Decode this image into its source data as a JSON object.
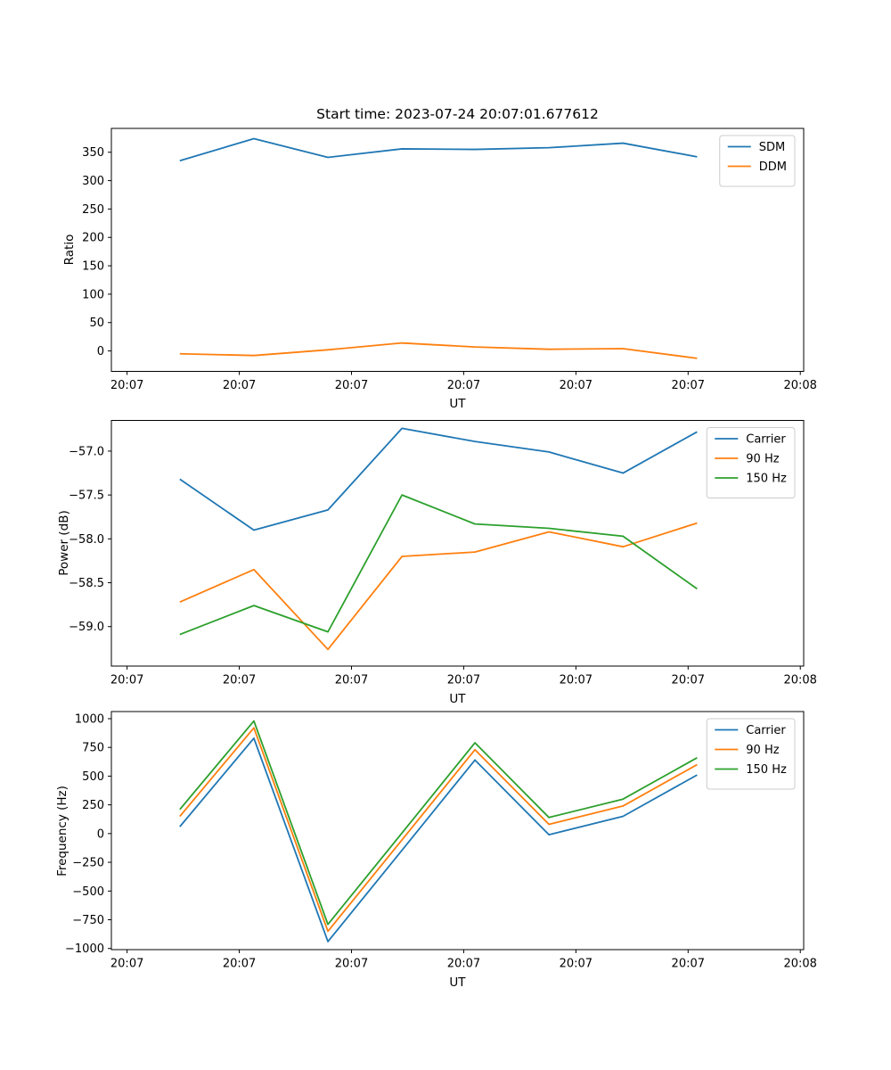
{
  "figure": {
    "title": "Start time: 2023-07-24 20:07:01.677612"
  },
  "palette": {
    "blue": "#1f77b4",
    "orange": "#ff7f0e",
    "green": "#2ca02c",
    "axis": "#000000",
    "legend_border": "#cccccc"
  },
  "x_axis": {
    "label": "UT",
    "tick_labels": [
      "20:07",
      "20:07",
      "20:07",
      "20:07",
      "20:07",
      "20:07",
      "20:08"
    ],
    "tick_positions_s": [
      0,
      10,
      20,
      30,
      40,
      50,
      60
    ],
    "xlim_s": [
      -1.4,
      60.3
    ],
    "sample_times_s": [
      4.7,
      11.3,
      17.9,
      24.5,
      31.0,
      37.6,
      44.2,
      50.8
    ]
  },
  "chart_data": [
    {
      "type": "line",
      "title": "Start time: 2023-07-24 20:07:01.677612",
      "xlabel": "UT",
      "ylabel": "Ratio",
      "ylim": [
        -36,
        392
      ],
      "yticks": [
        0,
        50,
        100,
        150,
        200,
        250,
        300,
        350
      ],
      "ytick_labels": [
        "0",
        "50",
        "100",
        "150",
        "200",
        "250",
        "300",
        "350"
      ],
      "grid": false,
      "legend_position": "upper right",
      "series": [
        {
          "name": "SDM",
          "color": "#1f77b4",
          "values": [
            335,
            374,
            341,
            356,
            355,
            358,
            366,
            342
          ]
        },
        {
          "name": "DDM",
          "color": "#ff7f0e",
          "values": [
            -5,
            -8,
            2,
            14,
            7,
            3,
            4,
            -13
          ]
        }
      ]
    },
    {
      "type": "line",
      "title": "",
      "xlabel": "UT",
      "ylabel": "Power (dB)",
      "ylim": [
        -59.45,
        -56.65
      ],
      "yticks": [
        -59.0,
        -58.5,
        -58.0,
        -57.5,
        -57.0
      ],
      "ytick_labels": [
        "−59.0",
        "−58.5",
        "−58.0",
        "−57.5",
        "−57.0"
      ],
      "grid": false,
      "legend_position": "upper right",
      "series": [
        {
          "name": "Carrier",
          "color": "#1f77b4",
          "values": [
            -57.32,
            -57.9,
            -57.67,
            -56.74,
            -56.89,
            -57.01,
            -57.25,
            -56.78
          ]
        },
        {
          "name": "90 Hz",
          "color": "#ff7f0e",
          "values": [
            -58.72,
            -58.35,
            -59.26,
            -58.2,
            -58.15,
            -57.92,
            -58.09,
            -57.82
          ]
        },
        {
          "name": "150 Hz",
          "color": "#2ca02c",
          "values": [
            -59.09,
            -58.76,
            -59.06,
            -57.5,
            -57.83,
            -57.88,
            -57.97,
            -58.57
          ]
        }
      ]
    },
    {
      "type": "line",
      "title": "",
      "xlabel": "UT",
      "ylabel": "Frequency (Hz)",
      "ylim": [
        -1010,
        1062
      ],
      "yticks": [
        -1000,
        -750,
        -500,
        -250,
        0,
        250,
        500,
        750,
        1000
      ],
      "ytick_labels": [
        "−1000",
        "−750",
        "−500",
        "−250",
        "0",
        "250",
        "500",
        "750",
        "1000"
      ],
      "grid": false,
      "legend_position": "upper right",
      "series": [
        {
          "name": "Carrier",
          "color": "#1f77b4",
          "values": [
            60,
            830,
            -940,
            -145,
            640,
            -10,
            150,
            510
          ]
        },
        {
          "name": "90 Hz",
          "color": "#ff7f0e",
          "values": [
            150,
            920,
            -850,
            -55,
            730,
            80,
            240,
            600
          ]
        },
        {
          "name": "150 Hz",
          "color": "#2ca02c",
          "values": [
            210,
            980,
            -790,
            5,
            790,
            140,
            300,
            660
          ]
        }
      ]
    }
  ]
}
